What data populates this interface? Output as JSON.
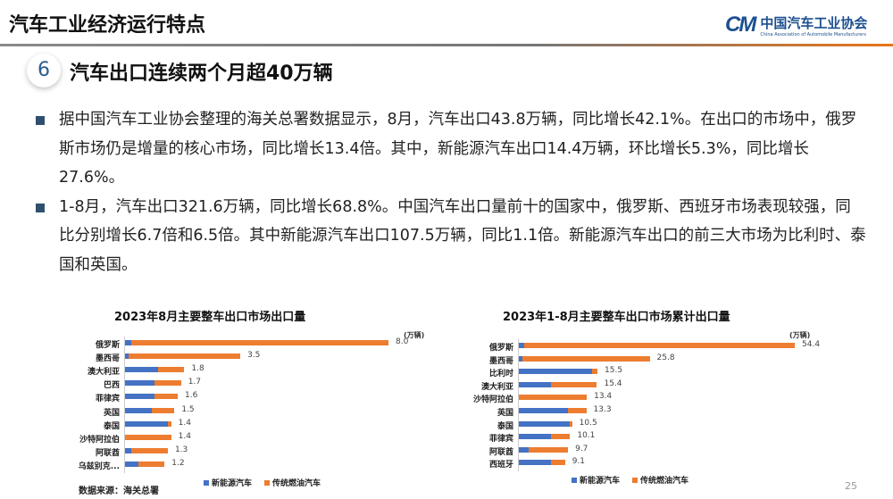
{
  "header": {
    "title": "汽车工业经济运行特点",
    "logo_cn": "中国汽车工业协会",
    "logo_en": "China Association of Automobile Manufacturers",
    "logo_mark": "CM"
  },
  "section": {
    "number": "6",
    "title": "汽车出口连续两个月超40万辆"
  },
  "bullets": [
    "据中国汽车工业协会整理的海关总署数据显示，8月，汽车出口43.8万辆，同比增长42.1%。在出口的市场中，俄罗斯市场仍是增量的核心市场，同比增长13.4倍。其中，新能源汽车出口14.4万辆，环比增长5.3%，同比增长27.6%。",
    "1-8月，汽车出口321.6万辆，同比增长68.8%。中国汽车出口量前十的国家中，俄罗斯、西班牙市场表现较强，同比分别增长6.7倍和6.5倍。其中新能源汽车出口107.5万辆，同比1.1倍。新能源汽车出口的前三大市场为比利时、泰国和英国。"
  ],
  "colors": {
    "nev": "#4472c4",
    "ice": "#ed7d31"
  },
  "chart_data": [
    {
      "type": "bar",
      "orientation": "horizontal",
      "stacked": true,
      "title": "2023年8月主要整车出口市场出口量",
      "unit": "(万辆)",
      "categories": [
        "俄罗斯",
        "墨西哥",
        "澳大利亚",
        "巴西",
        "菲律宾",
        "英国",
        "泰国",
        "沙特阿拉伯",
        "阿联酋",
        "乌兹别克..."
      ],
      "totals": [
        "8.0",
        "3.5",
        "1.8",
        "1.7",
        "1.6",
        "1.5",
        "1.4",
        "1.4",
        "1.3",
        "1.2"
      ],
      "series": [
        {
          "name": "新能源汽车",
          "values": [
            0.2,
            0.1,
            1.0,
            0.9,
            0.9,
            0.8,
            1.3,
            0,
            0.2,
            0.4
          ]
        },
        {
          "name": "传统燃油汽车",
          "values": [
            7.8,
            3.4,
            0.8,
            0.8,
            0.7,
            0.7,
            0.1,
            1.4,
            1.1,
            0.8
          ]
        }
      ],
      "xlim": [
        0,
        8.0
      ]
    },
    {
      "type": "bar",
      "orientation": "horizontal",
      "stacked": true,
      "title": "2023年1-8月主要整车出口市场累计出口量",
      "unit": "(万辆)",
      "categories": [
        "俄罗斯",
        "墨西哥",
        "比利时",
        "澳大利亚",
        "沙特阿拉伯",
        "英国",
        "泰国",
        "菲律宾",
        "阿联酋",
        "西班牙"
      ],
      "totals": [
        "54.4",
        "25.8",
        "15.5",
        "15.4",
        "13.4",
        "13.3",
        "10.5",
        "10.1",
        "9.7",
        "9.1"
      ],
      "series": [
        {
          "name": "新能源汽车",
          "values": [
            1.0,
            0.7,
            14.4,
            6.4,
            0,
            9.7,
            10.1,
            6.4,
            1.9,
            6.4
          ]
        },
        {
          "name": "传统燃油汽车",
          "values": [
            53.4,
            25.1,
            1.1,
            9.0,
            13.4,
            3.6,
            0.4,
            3.7,
            7.8,
            2.7
          ]
        }
      ],
      "xlim": [
        0,
        54.4
      ]
    }
  ],
  "source": "数据来源：海关总署",
  "page_number": "25"
}
